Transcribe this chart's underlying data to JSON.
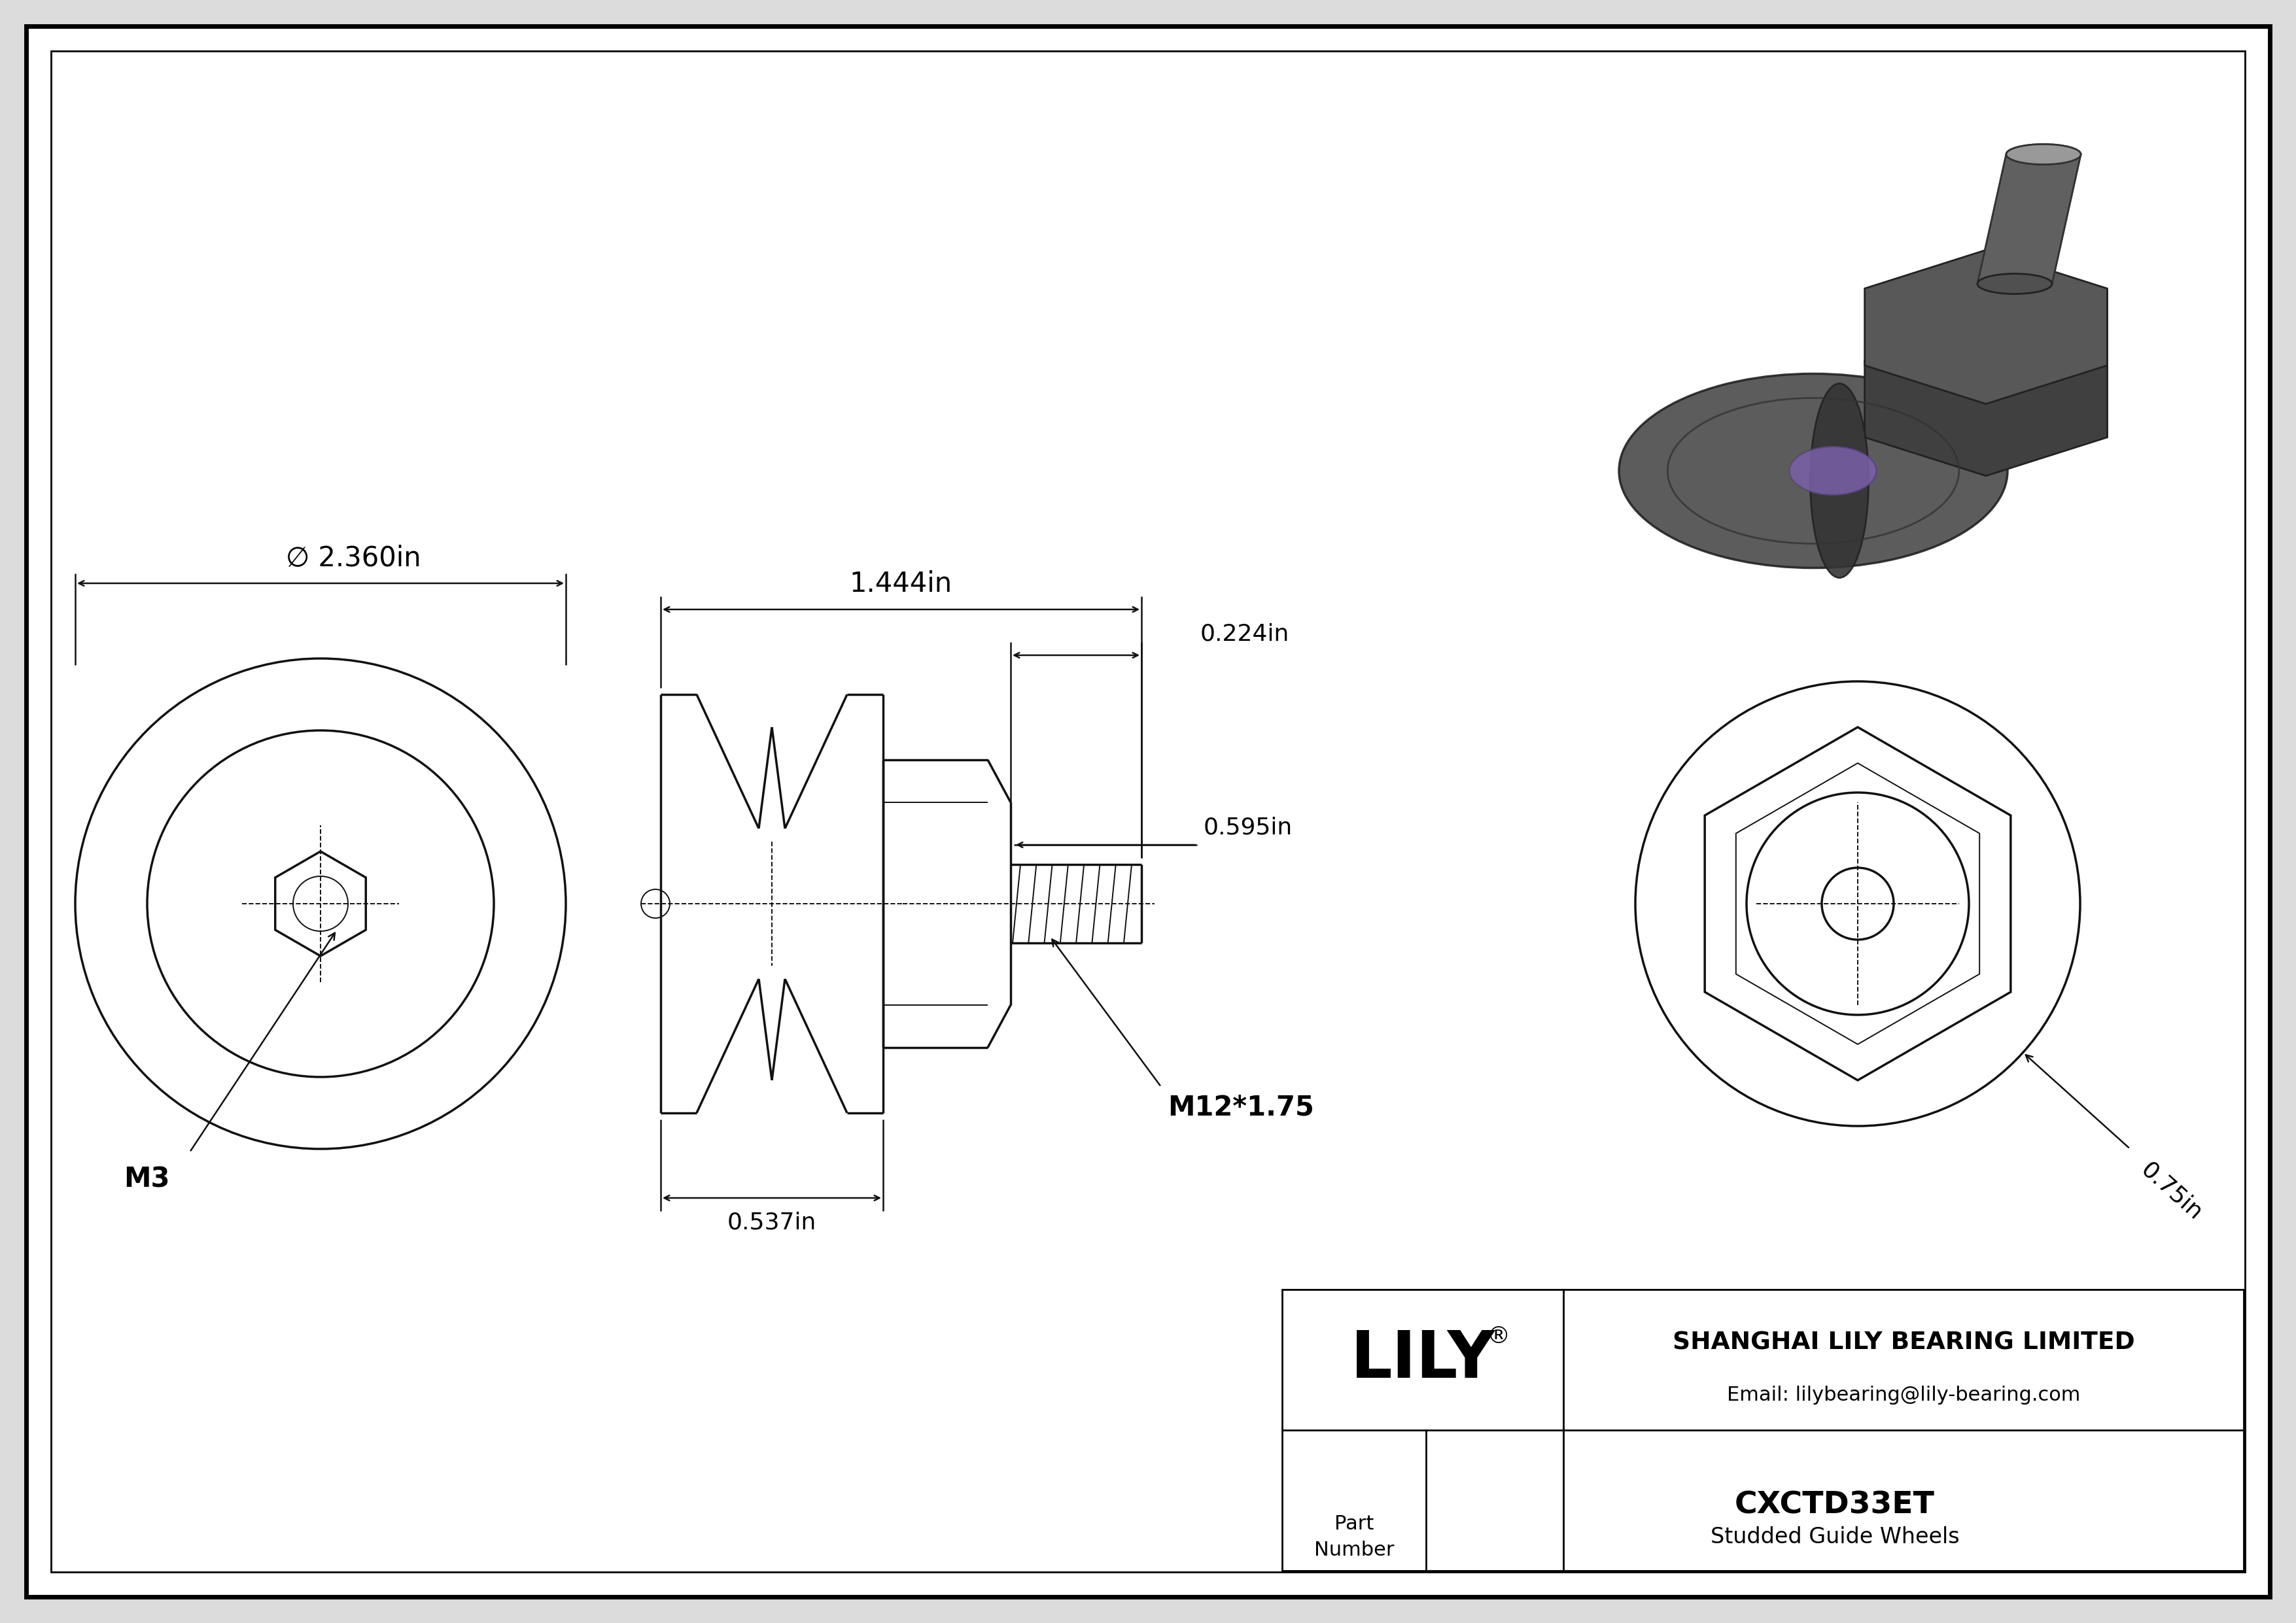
{
  "bg_color": "#dcdcdc",
  "line_color": "#111111",
  "company_name": "SHANGHAI LILY BEARING LIMITED",
  "email": "Email: lilybearing@lily-bearing.com",
  "part_number": "CXCTD33ET",
  "part_desc": "Studded Guide Wheels",
  "dim_diameter": "∅ 2.360in",
  "dim_length": "1.444in",
  "dim_stud_dia": "0.224in",
  "dim_hex_dia": "0.595in",
  "dim_thread": "M12*1.75",
  "dim_groove_len": "0.537in",
  "dim_right_angle": "0.75in",
  "dim_m3": "M3",
  "lw_main": 2.5,
  "lw_thin": 1.4,
  "lw_dim": 1.8,
  "font_dim": 30,
  "font_small": 26,
  "white": "#ffffff",
  "black": "#000000"
}
